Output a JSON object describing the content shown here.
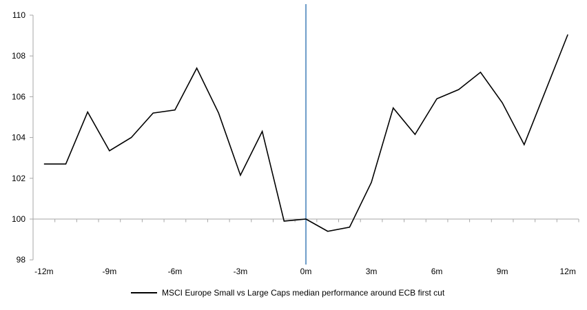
{
  "chart_data": {
    "type": "line",
    "title": "",
    "xlabel": "",
    "ylabel": "",
    "ylim": [
      98,
      110
    ],
    "y_ticks": [
      98,
      100,
      102,
      104,
      106,
      108,
      110
    ],
    "x_axis_cross_at": 100,
    "grid": "off",
    "legend_position": "bottom",
    "axis_color": "#A6A6A6",
    "background_color": "#FFFFFF",
    "series": [
      {
        "name": "MSCI Europe Small vs Large Caps median performance around ECB first cut",
        "color": "#000000",
        "x_months": [
          -12,
          -11,
          -10,
          -9,
          -8,
          -7,
          -6,
          -5,
          -4,
          -3,
          -2,
          -1,
          0,
          1,
          2,
          3,
          4,
          5,
          6,
          7,
          8,
          9,
          10,
          11,
          12
        ],
        "values": [
          102.7,
          102.7,
          105.25,
          103.35,
          104.0,
          105.2,
          105.35,
          107.4,
          105.2,
          102.15,
          104.3,
          99.9,
          100.0,
          99.4,
          99.6,
          101.8,
          105.45,
          104.15,
          105.9,
          106.35,
          107.2,
          105.7,
          103.65,
          106.35,
          109.05
        ]
      }
    ],
    "x_tick_labels": [
      {
        "month": -12,
        "label": "-12m"
      },
      {
        "month": -9,
        "label": "-9m"
      },
      {
        "month": -6,
        "label": "-6m"
      },
      {
        "month": -3,
        "label": "-3m"
      },
      {
        "month": 0,
        "label": "0m"
      },
      {
        "month": 3,
        "label": "3m"
      },
      {
        "month": 6,
        "label": "6m"
      },
      {
        "month": 9,
        "label": "9m"
      },
      {
        "month": 12,
        "label": "12m"
      }
    ],
    "event_line": {
      "month": 0,
      "color": "#74A1CB"
    }
  }
}
